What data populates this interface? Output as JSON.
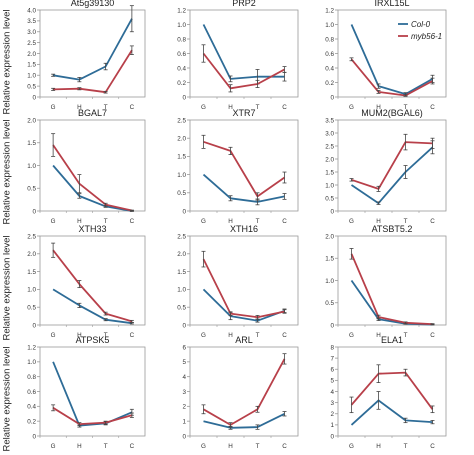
{
  "figure": {
    "ylabel": "Relative expression level",
    "categories": [
      "G",
      "H",
      "T",
      "C"
    ],
    "legend": [
      {
        "name": "Col-0",
        "color": "#2e6c97"
      },
      {
        "name": "myb56-1",
        "color": "#b8404a"
      }
    ]
  },
  "chart_data": [
    {
      "type": "line",
      "title": "At5g39130",
      "categories": [
        "G",
        "H",
        "T",
        "C"
      ],
      "ylim": [
        0,
        4
      ],
      "yticks": [
        0,
        0.5,
        1,
        1.5,
        2,
        2.5,
        3,
        3.5,
        4
      ],
      "series": [
        {
          "name": "Col-0",
          "values": [
            1.0,
            0.8,
            1.4,
            3.6
          ],
          "err": [
            0.05,
            0.1,
            0.15,
            0.6
          ]
        },
        {
          "name": "myb56-1",
          "values": [
            0.35,
            0.38,
            0.22,
            2.15
          ],
          "err": [
            0.05,
            0.05,
            0.04,
            0.2
          ]
        }
      ]
    },
    {
      "type": "line",
      "title": "PRP2",
      "categories": [
        "G",
        "H",
        "T",
        "C"
      ],
      "ylim": [
        0,
        1.2
      ],
      "yticks": [
        0,
        0.2,
        0.4,
        0.6,
        0.8,
        1.0,
        1.2
      ],
      "series": [
        {
          "name": "Col-0",
          "values": [
            1.0,
            0.25,
            0.28,
            0.28
          ],
          "err": [
            0.0,
            0.04,
            0.1,
            0.06
          ]
        },
        {
          "name": "myb56-1",
          "values": [
            0.6,
            0.12,
            0.18,
            0.38
          ],
          "err": [
            0.12,
            0.05,
            0.05,
            0.04
          ]
        }
      ]
    },
    {
      "type": "line",
      "title": "IRXL15L",
      "categories": [
        "G",
        "H",
        "T",
        "C"
      ],
      "ylim": [
        0,
        1.2
      ],
      "yticks": [
        0,
        0.2,
        0.4,
        0.6,
        0.8,
        1.0,
        1.2
      ],
      "legend": [
        "Col-0",
        "myb56-1"
      ],
      "series": [
        {
          "name": "Col-0",
          "values": [
            1.0,
            0.15,
            0.04,
            0.25
          ],
          "err": [
            0.0,
            0.03,
            0.02,
            0.05
          ]
        },
        {
          "name": "myb56-1",
          "values": [
            0.52,
            0.07,
            0.02,
            0.22
          ],
          "err": [
            0.02,
            0.02,
            0.01,
            0.04
          ]
        }
      ]
    },
    {
      "type": "line",
      "title": "BGAL7",
      "categories": [
        "G",
        "H",
        "T",
        "C"
      ],
      "ylim": [
        0,
        2
      ],
      "yticks": [
        0,
        0.5,
        1,
        1.5,
        2
      ],
      "series": [
        {
          "name": "Col-0",
          "values": [
            1.0,
            0.33,
            0.1,
            0.0
          ],
          "err": [
            0.0,
            0.05,
            0.02,
            0.01
          ]
        },
        {
          "name": "myb56-1",
          "values": [
            1.45,
            0.6,
            0.14,
            0.01
          ],
          "err": [
            0.25,
            0.2,
            0.03,
            0.01
          ]
        }
      ]
    },
    {
      "type": "line",
      "title": "XTR7",
      "categories": [
        "G",
        "H",
        "T",
        "C"
      ],
      "ylim": [
        0,
        2.5
      ],
      "yticks": [
        0,
        0.5,
        1,
        1.5,
        2,
        2.5
      ],
      "series": [
        {
          "name": "Col-0",
          "values": [
            1.0,
            0.35,
            0.25,
            0.4
          ],
          "err": [
            0.0,
            0.07,
            0.08,
            0.08
          ]
        },
        {
          "name": "myb56-1",
          "values": [
            1.9,
            1.65,
            0.4,
            0.92
          ],
          "err": [
            0.18,
            0.1,
            0.1,
            0.15
          ]
        }
      ]
    },
    {
      "type": "line",
      "title": "MUM2(BGAL6)",
      "categories": [
        "G",
        "H",
        "T",
        "C"
      ],
      "ylim": [
        0,
        3.5
      ],
      "yticks": [
        0,
        0.5,
        1,
        1.5,
        2,
        2.5,
        3,
        3.5
      ],
      "series": [
        {
          "name": "Col-0",
          "values": [
            1.0,
            0.3,
            1.5,
            2.45
          ],
          "err": [
            0.0,
            0.05,
            0.25,
            0.25
          ]
        },
        {
          "name": "myb56-1",
          "values": [
            1.2,
            0.85,
            2.65,
            2.6
          ],
          "err": [
            0.05,
            0.1,
            0.3,
            0.2
          ]
        }
      ]
    },
    {
      "type": "line",
      "title": "XTH33",
      "categories": [
        "G",
        "H",
        "T",
        "C"
      ],
      "ylim": [
        0,
        2.5
      ],
      "yticks": [
        0,
        0.5,
        1,
        1.5,
        2,
        2.5
      ],
      "series": [
        {
          "name": "Col-0",
          "values": [
            1.0,
            0.55,
            0.15,
            0.05
          ],
          "err": [
            0.0,
            0.06,
            0.03,
            0.02
          ]
        },
        {
          "name": "myb56-1",
          "values": [
            2.1,
            1.15,
            0.32,
            0.1
          ],
          "err": [
            0.2,
            0.1,
            0.04,
            0.03
          ]
        }
      ]
    },
    {
      "type": "line",
      "title": "XTH16",
      "categories": [
        "G",
        "H",
        "T",
        "C"
      ],
      "ylim": [
        0,
        2.5
      ],
      "yticks": [
        0,
        0.5,
        1,
        1.5,
        2,
        2.5
      ],
      "series": [
        {
          "name": "Col-0",
          "values": [
            1.0,
            0.25,
            0.12,
            0.4
          ],
          "err": [
            0.0,
            0.1,
            0.04,
            0.05
          ]
        },
        {
          "name": "myb56-1",
          "values": [
            1.85,
            0.32,
            0.22,
            0.38
          ],
          "err": [
            0.22,
            0.05,
            0.05,
            0.05
          ]
        }
      ]
    },
    {
      "type": "line",
      "title": "ATSBT5.2",
      "categories": [
        "G",
        "H",
        "T",
        "C"
      ],
      "ylim": [
        0,
        2
      ],
      "yticks": [
        0,
        0.5,
        1,
        1.5,
        2
      ],
      "series": [
        {
          "name": "Col-0",
          "values": [
            1.0,
            0.13,
            0.03,
            0.01
          ],
          "err": [
            0.0,
            0.03,
            0.01,
            0.01
          ]
        },
        {
          "name": "myb56-1",
          "values": [
            1.6,
            0.18,
            0.05,
            0.02
          ],
          "err": [
            0.12,
            0.04,
            0.02,
            0.01
          ]
        }
      ]
    },
    {
      "type": "line",
      "title": "ATPSK5",
      "categories": [
        "G",
        "H",
        "T",
        "C"
      ],
      "ylim": [
        0,
        1.2
      ],
      "yticks": [
        0,
        0.2,
        0.4,
        0.6,
        0.8,
        1.0,
        1.2
      ],
      "series": [
        {
          "name": "Col-0",
          "values": [
            1.0,
            0.14,
            0.17,
            0.32
          ],
          "err": [
            0.0,
            0.02,
            0.02,
            0.04
          ]
        },
        {
          "name": "myb56-1",
          "values": [
            0.38,
            0.16,
            0.18,
            0.28
          ],
          "err": [
            0.04,
            0.02,
            0.02,
            0.03
          ]
        }
      ]
    },
    {
      "type": "line",
      "title": "ARL",
      "categories": [
        "G",
        "H",
        "T",
        "C"
      ],
      "ylim": [
        0,
        6
      ],
      "yticks": [
        0,
        1,
        2,
        3,
        4,
        5,
        6
      ],
      "series": [
        {
          "name": "Col-0",
          "values": [
            1.0,
            0.55,
            0.6,
            1.5
          ],
          "err": [
            0.0,
            0.1,
            0.15,
            0.15
          ]
        },
        {
          "name": "myb56-1",
          "values": [
            1.8,
            0.75,
            1.8,
            5.2
          ],
          "err": [
            0.3,
            0.15,
            0.2,
            0.35
          ]
        }
      ]
    },
    {
      "type": "line",
      "title": "ELA1",
      "categories": [
        "G",
        "H",
        "T",
        "C"
      ],
      "ylim": [
        0,
        8
      ],
      "yticks": [
        0,
        1,
        2,
        3,
        4,
        5,
        6,
        7,
        8
      ],
      "series": [
        {
          "name": "Col-0",
          "values": [
            1.0,
            3.2,
            1.4,
            1.25
          ],
          "err": [
            0.0,
            0.8,
            0.2,
            0.15
          ]
        },
        {
          "name": "myb56-1",
          "values": [
            2.8,
            5.6,
            5.7,
            2.4
          ],
          "err": [
            0.7,
            0.8,
            0.3,
            0.3
          ]
        }
      ]
    }
  ]
}
